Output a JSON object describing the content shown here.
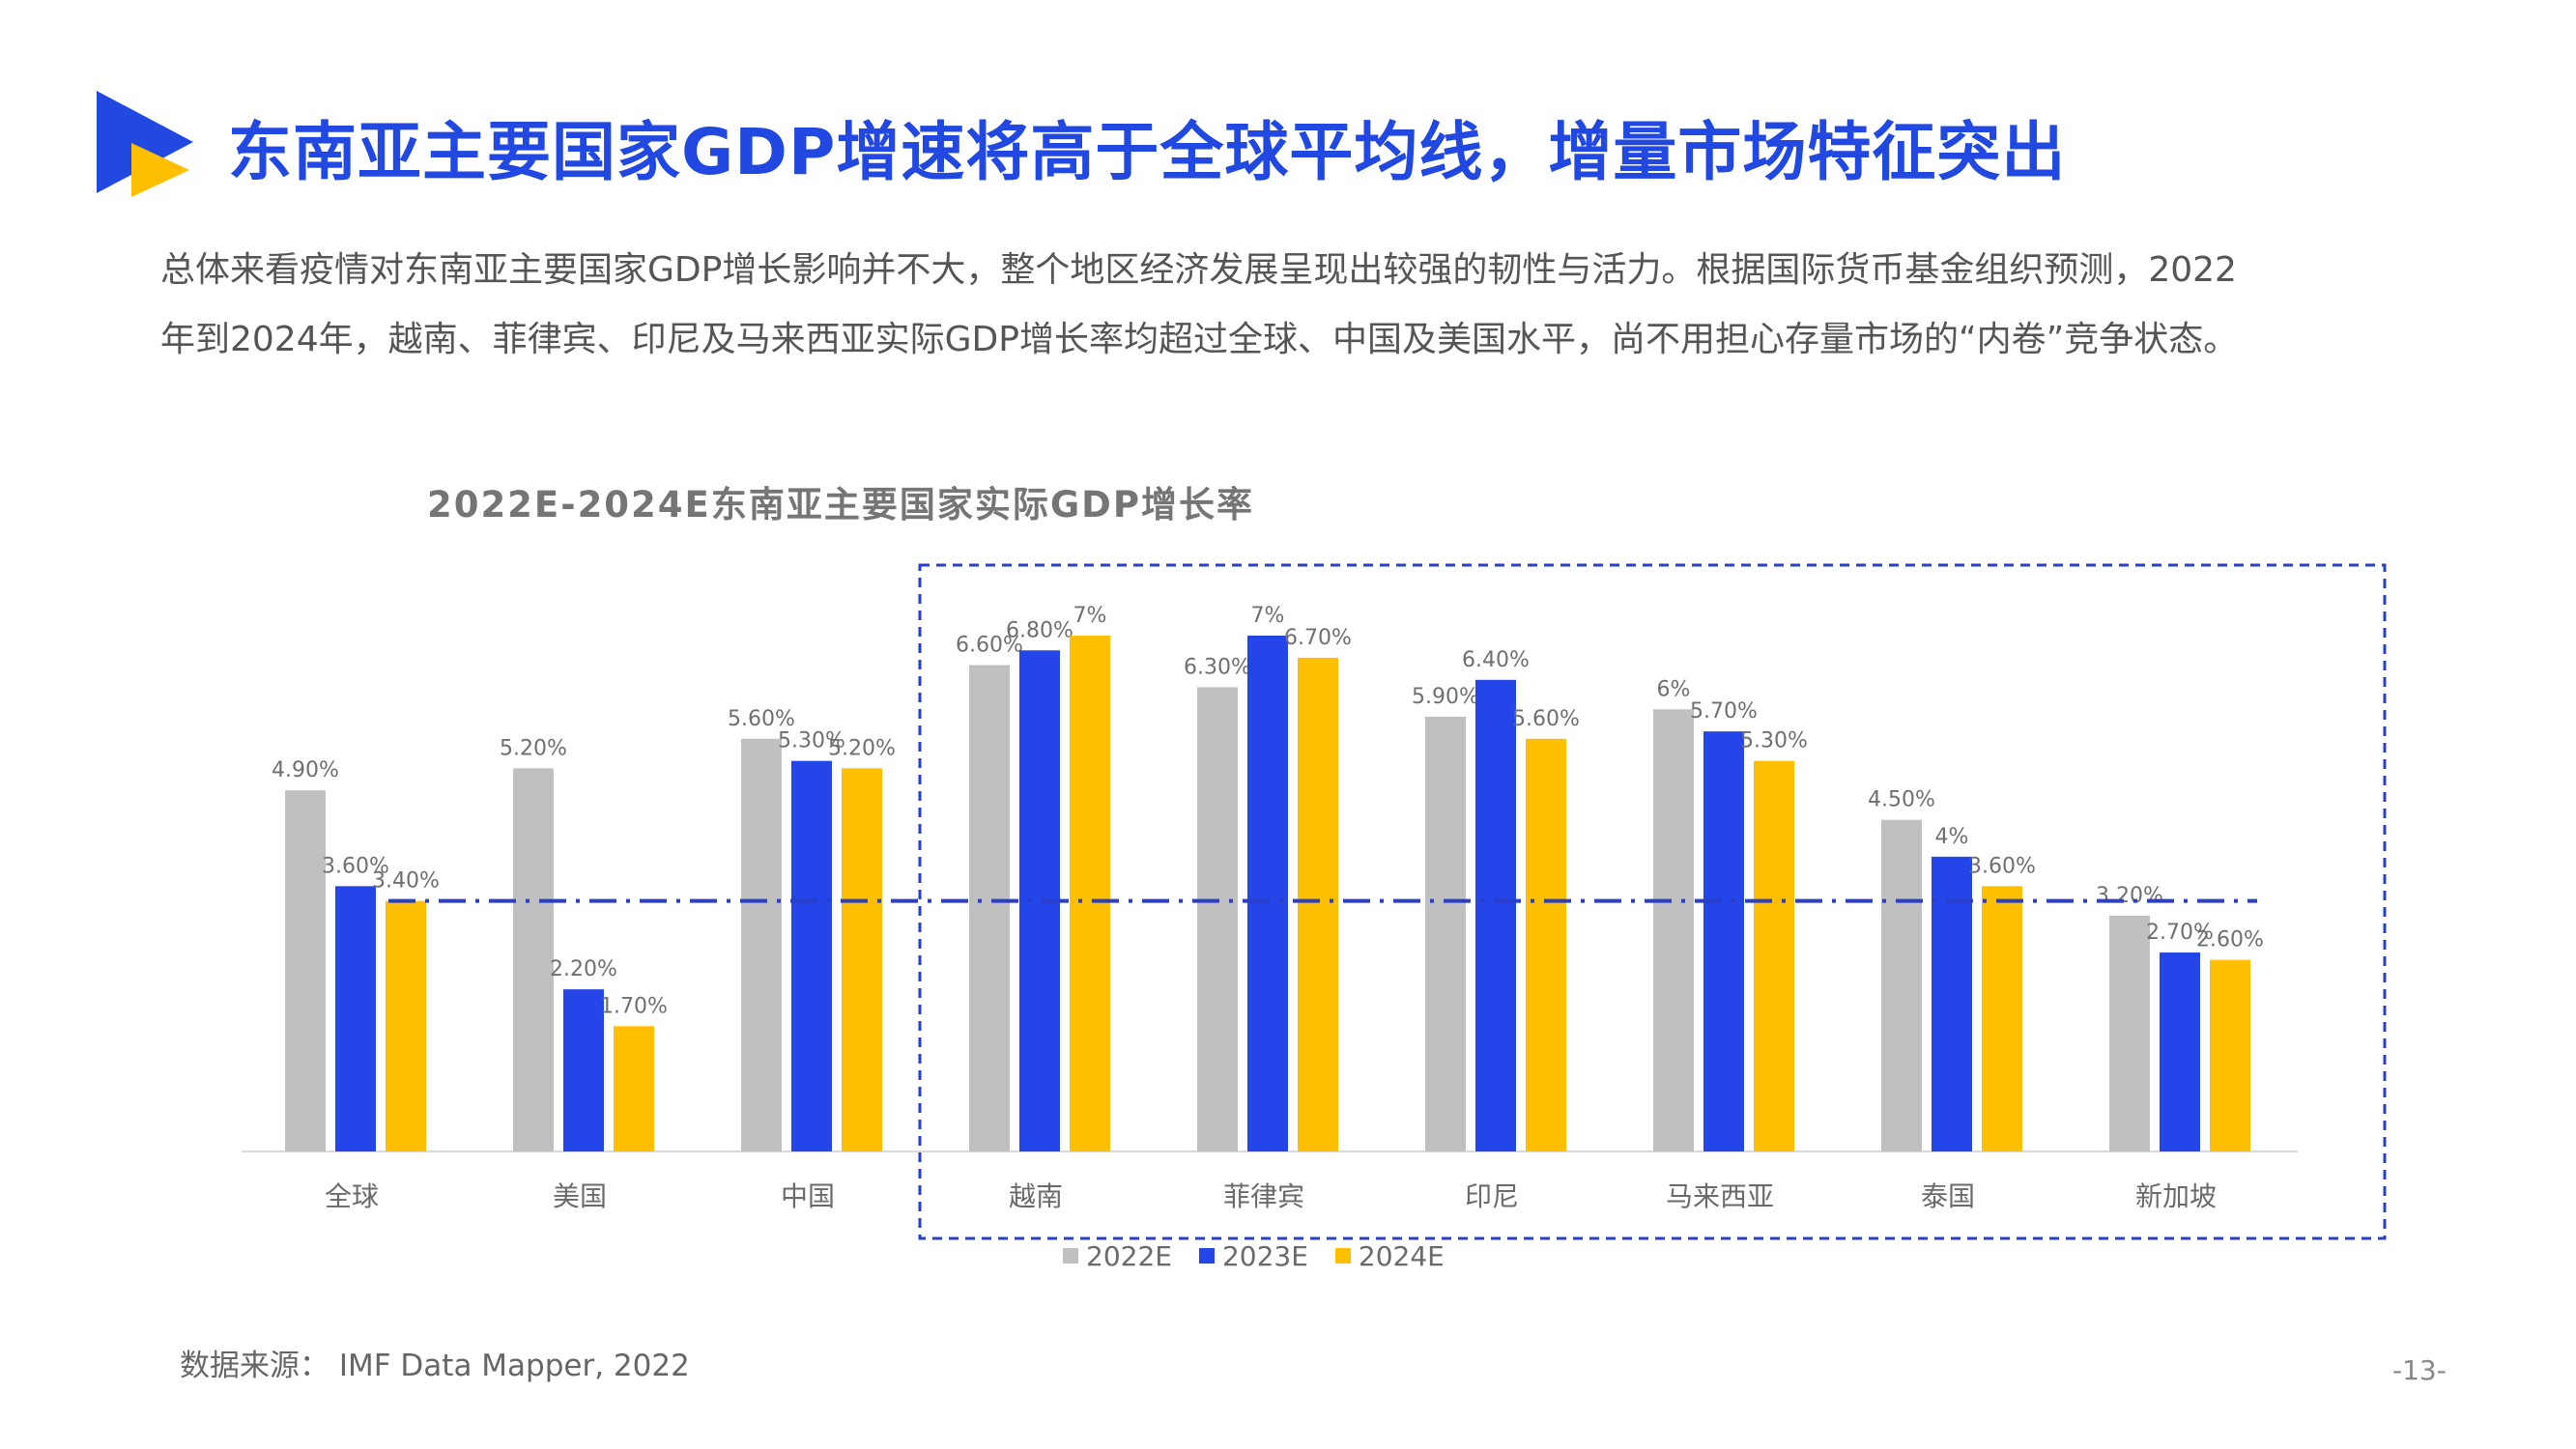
{
  "header": {
    "title": "东南亚主要国家GDP增速将高于全球平均线，增量市场特征突出"
  },
  "intro": {
    "line1": "总体来看疫情对东南亚主要国家GDP增长影响并不大，整个地区经济发展呈现出较强的韧性与活力。根据国际货币基金组织预测，2022",
    "line2": "年到2024年，越南、菲律宾、印尼及马来西亚实际GDP增长率均超过全球、中国及美国水平，尚不用担心存量市场的“内卷”竞争状态。"
  },
  "footer": {
    "source": "数据来源： IMF Data Mapper, 2022",
    "page_number": "-13-"
  },
  "colors": {
    "title_blue": "#2148e0",
    "series_2022": "#c0c0c0",
    "series_2023": "#2445e8",
    "series_2024": "#fdbf00",
    "reference_line": "#2a3fc8",
    "highlight_box": "#2a3fc8",
    "logo_blue": "#2148e0",
    "logo_yellow": "#fdbf00"
  },
  "chart_data": {
    "type": "bar",
    "title": "2022E-2024E东南亚主要国家实际GDP增长率",
    "categories": [
      "全球",
      "美国",
      "中国",
      "越南",
      "菲律宾",
      "印尼",
      "马来西亚",
      "泰国",
      "新加坡"
    ],
    "series": [
      {
        "name": "2022E",
        "values": [
          4.9,
          5.2,
          5.6,
          6.6,
          6.3,
          5.9,
          6.0,
          4.5,
          3.2
        ],
        "labels": [
          "4.90%",
          "5.20%",
          "5.60%",
          "6.60%",
          "6.30%",
          "5.90%",
          "6%",
          "4.50%",
          "3.20%"
        ]
      },
      {
        "name": "2023E",
        "values": [
          3.6,
          2.2,
          5.3,
          6.8,
          7.0,
          6.4,
          5.7,
          4.0,
          2.7
        ],
        "labels": [
          "3.60%",
          "2.20%",
          "5.30%",
          "6.80%",
          "7%",
          "6.40%",
          "5.70%",
          "4%",
          "2.70%"
        ]
      },
      {
        "name": "2024E",
        "values": [
          3.4,
          1.7,
          5.2,
          7.0,
          6.7,
          5.6,
          5.3,
          3.6,
          2.6
        ],
        "labels": [
          "3.40%",
          "1.70%",
          "5.20%",
          "7%",
          "6.70%",
          "5.60%",
          "5.30%",
          "3.60%",
          "2.60%"
        ]
      }
    ],
    "reference_line": {
      "value": 3.4,
      "style": "dash-dot"
    },
    "highlight_box": {
      "from_category": "越南",
      "to_category": "新加坡",
      "style": "dashed"
    },
    "ylim": [
      0,
      7
    ],
    "xlabel": "",
    "ylabel": "",
    "grid": false,
    "legend": "bottom"
  }
}
